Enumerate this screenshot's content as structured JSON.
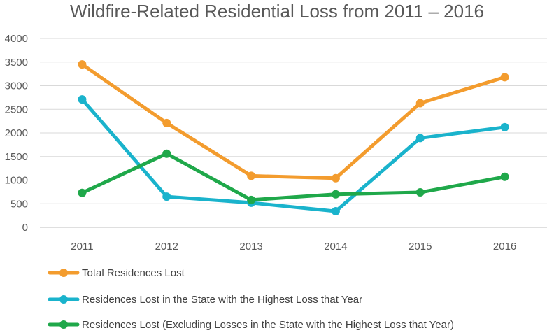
{
  "chart_data": {
    "type": "line",
    "title": "Wildfire-Related Residential Loss from 2011 – 2016",
    "xlabel": "",
    "ylabel": "",
    "x": [
      "2011",
      "2012",
      "2013",
      "2014",
      "2015",
      "2016"
    ],
    "ylim": [
      0,
      4000
    ],
    "yticks": [
      "0",
      "500",
      "1000",
      "1500",
      "2000",
      "2500",
      "3000",
      "3500",
      "4000"
    ],
    "grid": true,
    "legend_position": "bottom",
    "series": [
      {
        "name": "Total Residences Lost",
        "color": "#F39C2E",
        "values": [
          3450,
          2210,
          1090,
          1040,
          2630,
          3180
        ]
      },
      {
        "name": "Residences Lost in the State with the Highest Loss that Year",
        "color": "#1AB3CC",
        "values": [
          2710,
          650,
          520,
          340,
          1890,
          2120
        ]
      },
      {
        "name": "Residences Lost (Excluding Losses in the State with the Highest Loss that Year)",
        "color": "#1FA84A",
        "values": [
          730,
          1560,
          580,
          700,
          740,
          1070
        ]
      }
    ]
  }
}
